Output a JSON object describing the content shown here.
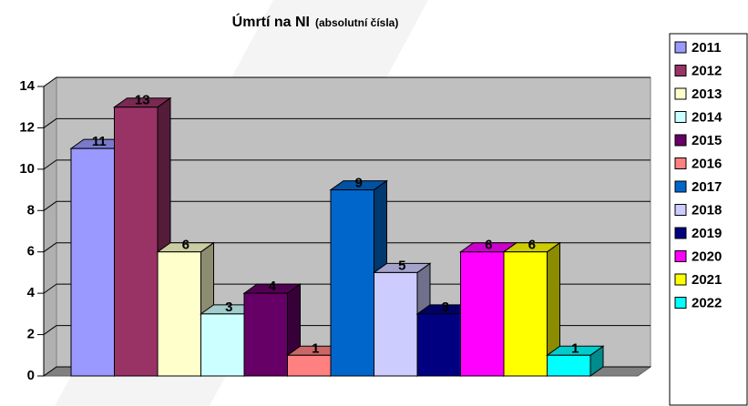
{
  "chart_data": {
    "type": "bar3d",
    "title": "Úmrtí na NI",
    "subtitle": "(absolutní čísla)",
    "categories": [
      null
    ],
    "series": [
      {
        "name": "2011",
        "color": "#9999ff",
        "values": [
          11
        ]
      },
      {
        "name": "2012",
        "color": "#993366",
        "values": [
          13
        ]
      },
      {
        "name": "2013",
        "color": "#ffffcc",
        "values": [
          6
        ]
      },
      {
        "name": "2014",
        "color": "#ccffff",
        "values": [
          3
        ]
      },
      {
        "name": "2015",
        "color": "#660066",
        "values": [
          4
        ]
      },
      {
        "name": "2016",
        "color": "#ff8080",
        "values": [
          1
        ]
      },
      {
        "name": "2017",
        "color": "#0066cc",
        "values": [
          9
        ]
      },
      {
        "name": "2018",
        "color": "#ccccff",
        "values": [
          5
        ]
      },
      {
        "name": "2019",
        "color": "#000080",
        "values": [
          3
        ]
      },
      {
        "name": "2020",
        "color": "#ff00ff",
        "values": [
          6
        ]
      },
      {
        "name": "2021",
        "color": "#ffff00",
        "values": [
          6
        ]
      },
      {
        "name": "2022",
        "color": "#00ffff",
        "values": [
          1
        ]
      }
    ],
    "ylim": [
      0,
      14
    ],
    "yticks": [
      0,
      2,
      4,
      6,
      8,
      10,
      12,
      14
    ],
    "grid": true,
    "legend": "right"
  }
}
